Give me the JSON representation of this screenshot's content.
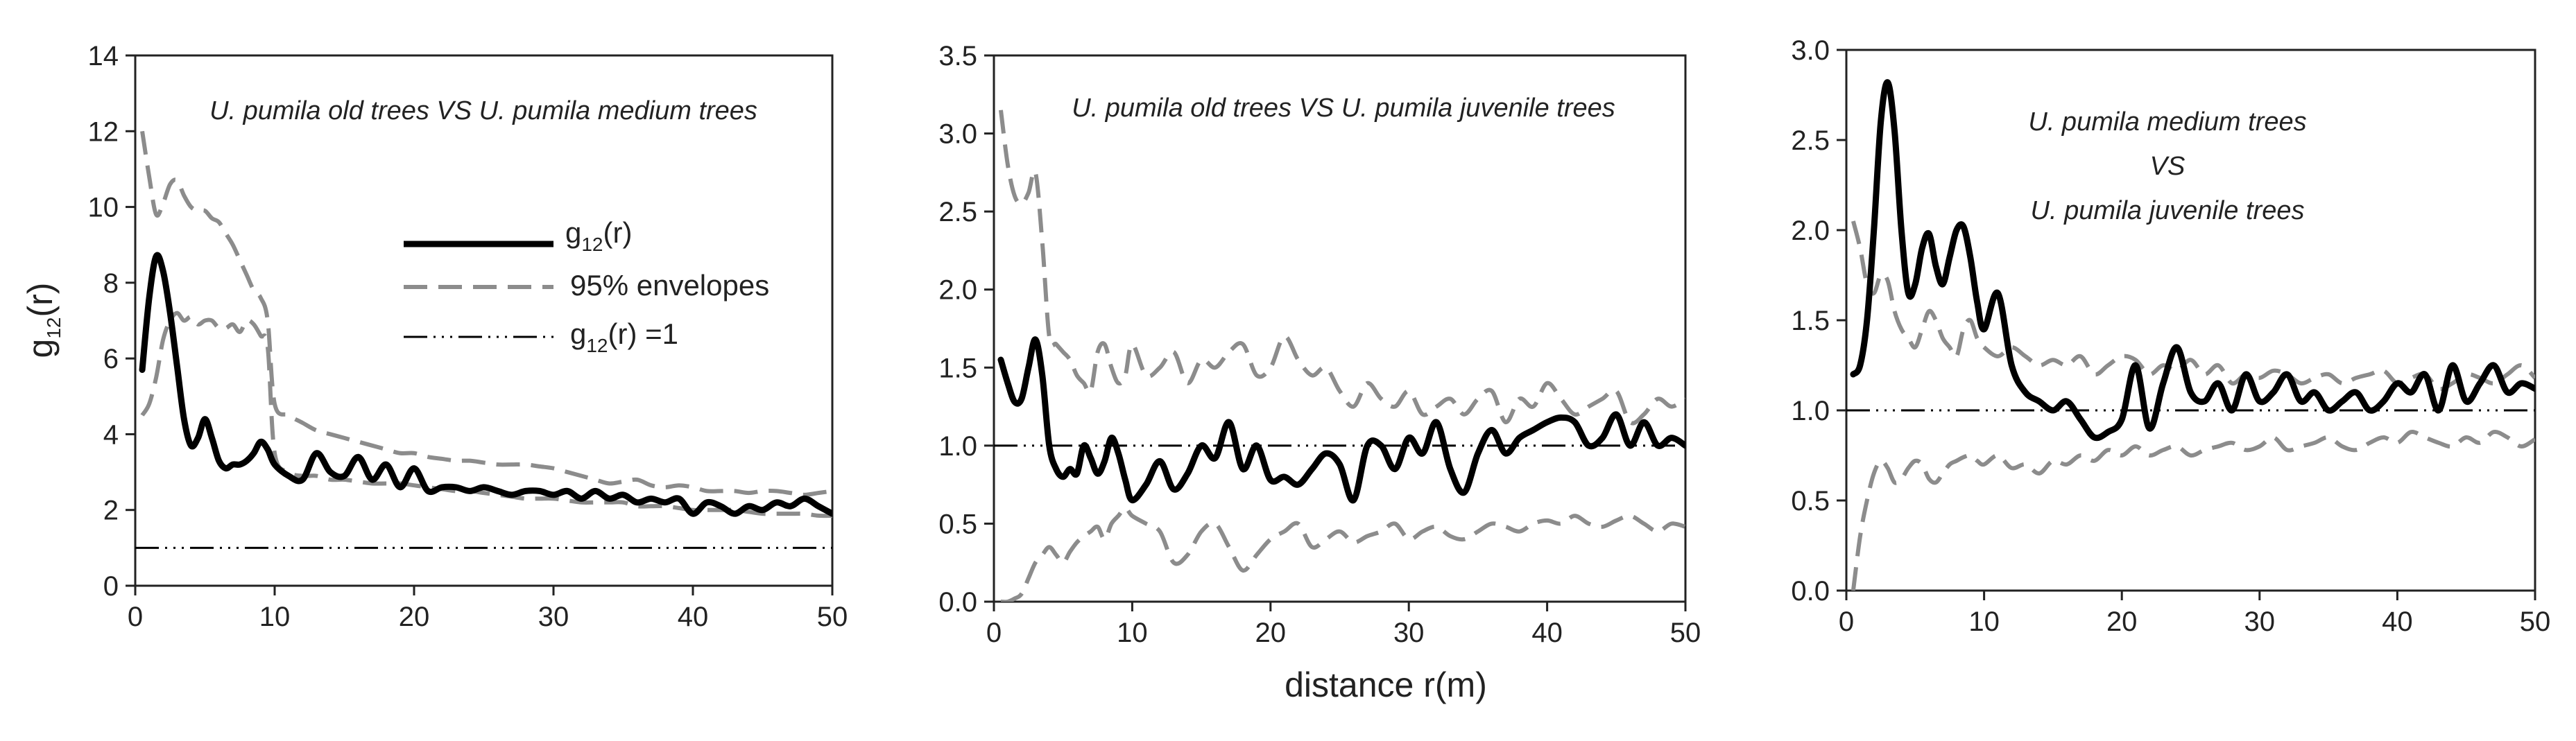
{
  "figure": {
    "xlabel": "distance r(m)",
    "legend": {
      "observed_base": "g",
      "observed_sub": "12",
      "observed_tail": "(r)",
      "envelope": "95% envelopes",
      "reference_base": "g",
      "reference_sub": "12",
      "reference_tail": "(r) =1"
    }
  },
  "chart_data": [
    {
      "type": "line",
      "title_lines": [
        "U. pumila old trees VS U. pumila medium trees"
      ],
      "ylabel_base": "g",
      "ylabel_sub": "12",
      "ylabel_tail": "(r)",
      "xlim": [
        0,
        50
      ],
      "ylim": [
        0,
        14
      ],
      "xticks": [
        0,
        10,
        20,
        30,
        40,
        50
      ],
      "yticks": [
        0,
        2,
        4,
        6,
        8,
        10,
        12,
        14
      ],
      "x": [
        0.5,
        1,
        1.5,
        2,
        2.5,
        3,
        3.5,
        4,
        4.5,
        5,
        5.5,
        6,
        6.5,
        7,
        7.5,
        8,
        8.5,
        9,
        9.5,
        10,
        11,
        12,
        13,
        14,
        15,
        16,
        17,
        18,
        19,
        20,
        21,
        22,
        23,
        24,
        25,
        26,
        27,
        28,
        29,
        30,
        31,
        32,
        33,
        34,
        35,
        36,
        37,
        38,
        39,
        40,
        41,
        42,
        43,
        44,
        45,
        46,
        47,
        48,
        49,
        50
      ],
      "series": [
        {
          "name": "g12(r)",
          "style": "observed",
          "values": [
            5.7,
            7.6,
            8.7,
            8.3,
            7.2,
            5.8,
            4.4,
            3.7,
            3.9,
            4.4,
            3.9,
            3.3,
            3.1,
            3.2,
            3.2,
            3.3,
            3.5,
            3.8,
            3.6,
            3.2,
            2.9,
            2.8,
            3.5,
            3.0,
            2.9,
            3.4,
            2.8,
            3.2,
            2.6,
            3.1,
            2.5,
            2.6,
            2.6,
            2.5,
            2.6,
            2.5,
            2.4,
            2.5,
            2.5,
            2.4,
            2.5,
            2.3,
            2.5,
            2.3,
            2.4,
            2.2,
            2.3,
            2.2,
            2.3,
            1.9,
            2.2,
            2.1,
            1.9,
            2.1,
            2.0,
            2.2,
            2.1,
            2.3,
            2.1,
            1.9
          ]
        },
        {
          "name": "95% envelopes upper",
          "style": "envelope",
          "values": [
            12.0,
            10.8,
            9.8,
            10.1,
            10.6,
            10.7,
            10.3,
            10.0,
            9.9,
            9.9,
            9.7,
            9.6,
            9.3,
            9.0,
            8.6,
            8.2,
            7.8,
            7.6,
            7.0,
            4.8,
            4.5,
            4.3,
            4.1,
            4.0,
            3.9,
            3.8,
            3.7,
            3.6,
            3.5,
            3.5,
            3.4,
            3.35,
            3.3,
            3.3,
            3.25,
            3.2,
            3.2,
            3.2,
            3.15,
            3.1,
            3.0,
            2.9,
            2.8,
            2.7,
            2.75,
            2.8,
            2.65,
            2.6,
            2.65,
            2.6,
            2.5,
            2.5,
            2.5,
            2.45,
            2.5,
            2.5,
            2.45,
            2.4,
            2.45,
            2.5
          ]
        },
        {
          "name": "95% envelopes lower",
          "style": "envelope",
          "values": [
            4.5,
            4.8,
            5.5,
            6.5,
            7.0,
            7.2,
            7.0,
            7.1,
            6.9,
            7.0,
            7.0,
            6.8,
            6.8,
            6.9,
            6.7,
            7.0,
            6.9,
            6.6,
            6.3,
            3.5,
            3.0,
            2.9,
            2.9,
            2.8,
            2.8,
            2.75,
            2.7,
            2.7,
            2.7,
            2.65,
            2.6,
            2.55,
            2.5,
            2.5,
            2.45,
            2.4,
            2.35,
            2.3,
            2.3,
            2.3,
            2.25,
            2.2,
            2.2,
            2.2,
            2.2,
            2.1,
            2.1,
            2.1,
            2.05,
            2.0,
            2.0,
            2.0,
            2.0,
            1.95,
            1.9,
            1.9,
            1.9,
            1.9,
            1.85,
            1.85
          ]
        },
        {
          "name": "g12(r) =1",
          "style": "reference",
          "values": [
            1,
            1,
            1,
            1,
            1,
            1,
            1,
            1,
            1,
            1,
            1,
            1,
            1,
            1,
            1,
            1,
            1,
            1,
            1,
            1,
            1,
            1,
            1,
            1,
            1,
            1,
            1,
            1,
            1,
            1,
            1,
            1,
            1,
            1,
            1,
            1,
            1,
            1,
            1,
            1,
            1,
            1,
            1,
            1,
            1,
            1,
            1,
            1,
            1,
            1,
            1,
            1,
            1,
            1,
            1,
            1,
            1,
            1,
            1,
            1
          ]
        }
      ]
    },
    {
      "type": "line",
      "title_lines": [
        "U. pumila old trees VS U. pumila juvenile trees"
      ],
      "xlim": [
        0,
        50
      ],
      "ylim": [
        0,
        3.5
      ],
      "xticks": [
        0,
        10,
        20,
        30,
        40,
        50
      ],
      "yticks": [
        "0.0",
        "0.5",
        "1.0",
        "1.5",
        "2.0",
        "2.5",
        "3.0",
        "3.5"
      ],
      "x": [
        0.5,
        1,
        1.5,
        2,
        2.5,
        3,
        3.5,
        4,
        4.5,
        5,
        5.5,
        6,
        6.5,
        7,
        7.5,
        8,
        8.5,
        9,
        9.5,
        10,
        11,
        12,
        13,
        14,
        15,
        16,
        17,
        18,
        19,
        20,
        21,
        22,
        23,
        24,
        25,
        26,
        27,
        28,
        29,
        30,
        31,
        32,
        33,
        34,
        35,
        36,
        37,
        38,
        39,
        40,
        41,
        42,
        43,
        44,
        45,
        46,
        47,
        48,
        49,
        50
      ],
      "series": [
        {
          "name": "g12(r)",
          "style": "observed",
          "values": [
            1.55,
            1.4,
            1.28,
            1.3,
            1.5,
            1.68,
            1.45,
            1.0,
            0.85,
            0.8,
            0.85,
            0.82,
            1.0,
            0.92,
            0.82,
            0.9,
            1.05,
            0.95,
            0.78,
            0.65,
            0.75,
            0.9,
            0.72,
            0.82,
            1.0,
            0.92,
            1.15,
            0.85,
            1.0,
            0.78,
            0.8,
            0.75,
            0.85,
            0.95,
            0.88,
            0.65,
            1.0,
            1.0,
            0.85,
            1.05,
            0.95,
            1.15,
            0.85,
            0.7,
            0.95,
            1.1,
            0.95,
            1.05,
            1.1,
            1.15,
            1.18,
            1.15,
            1.0,
            1.05,
            1.2,
            1.0,
            1.15,
            1.0,
            1.05,
            1.0
          ]
        },
        {
          "name": "95% envelopes upper",
          "style": "envelope",
          "values": [
            3.15,
            2.8,
            2.6,
            2.55,
            2.62,
            2.75,
            2.3,
            1.7,
            1.65,
            1.6,
            1.55,
            1.45,
            1.4,
            1.35,
            1.6,
            1.65,
            1.5,
            1.4,
            1.45,
            1.65,
            1.45,
            1.5,
            1.6,
            1.4,
            1.55,
            1.5,
            1.6,
            1.65,
            1.45,
            1.5,
            1.7,
            1.55,
            1.45,
            1.5,
            1.35,
            1.25,
            1.4,
            1.3,
            1.25,
            1.35,
            1.2,
            1.25,
            1.3,
            1.2,
            1.3,
            1.35,
            1.15,
            1.3,
            1.25,
            1.4,
            1.3,
            1.2,
            1.25,
            1.3,
            1.35,
            1.15,
            1.2,
            1.3,
            1.25,
            1.3
          ]
        },
        {
          "name": "95% envelopes lower",
          "style": "envelope",
          "values": [
            0.0,
            0.0,
            0.02,
            0.05,
            0.15,
            0.25,
            0.3,
            0.35,
            0.3,
            0.25,
            0.32,
            0.38,
            0.42,
            0.45,
            0.48,
            0.4,
            0.5,
            0.55,
            0.6,
            0.55,
            0.5,
            0.45,
            0.25,
            0.3,
            0.45,
            0.5,
            0.35,
            0.2,
            0.3,
            0.4,
            0.45,
            0.5,
            0.35,
            0.4,
            0.45,
            0.38,
            0.42,
            0.45,
            0.5,
            0.4,
            0.45,
            0.48,
            0.42,
            0.4,
            0.45,
            0.5,
            0.48,
            0.45,
            0.5,
            0.52,
            0.5,
            0.55,
            0.5,
            0.48,
            0.52,
            0.55,
            0.5,
            0.45,
            0.5,
            0.48
          ]
        },
        {
          "name": "g12(r) =1",
          "style": "reference",
          "values": [
            1,
            1,
            1,
            1,
            1,
            1,
            1,
            1,
            1,
            1,
            1,
            1,
            1,
            1,
            1,
            1,
            1,
            1,
            1,
            1,
            1,
            1,
            1,
            1,
            1,
            1,
            1,
            1,
            1,
            1,
            1,
            1,
            1,
            1,
            1,
            1,
            1,
            1,
            1,
            1,
            1,
            1,
            1,
            1,
            1,
            1,
            1,
            1,
            1,
            1,
            1,
            1,
            1,
            1,
            1,
            1,
            1,
            1,
            1,
            1
          ]
        }
      ]
    },
    {
      "type": "line",
      "title_lines": [
        "U. pumila medium trees",
        "VS",
        "U. pumila juvenile trees"
      ],
      "xlim": [
        0,
        50
      ],
      "ylim": [
        0,
        3.0
      ],
      "xticks": [
        0,
        10,
        20,
        30,
        40,
        50
      ],
      "yticks": [
        "0.0",
        "0.5",
        "1.0",
        "1.5",
        "2.0",
        "2.5",
        "3.0"
      ],
      "x": [
        0.5,
        1,
        1.5,
        2,
        2.5,
        3,
        3.5,
        4,
        4.5,
        5,
        5.5,
        6,
        6.5,
        7,
        7.5,
        8,
        8.5,
        9,
        9.5,
        10,
        11,
        12,
        13,
        14,
        15,
        16,
        17,
        18,
        19,
        20,
        21,
        22,
        23,
        24,
        25,
        26,
        27,
        28,
        29,
        30,
        31,
        32,
        33,
        34,
        35,
        36,
        37,
        38,
        39,
        40,
        41,
        42,
        43,
        44,
        45,
        46,
        47,
        48,
        49,
        50
      ],
      "series": [
        {
          "name": "g12(r)",
          "style": "observed",
          "values": [
            1.2,
            1.25,
            1.5,
            2.0,
            2.6,
            2.82,
            2.55,
            2.0,
            1.65,
            1.7,
            1.9,
            1.98,
            1.8,
            1.7,
            1.85,
            2.0,
            2.02,
            1.85,
            1.6,
            1.45,
            1.65,
            1.25,
            1.1,
            1.05,
            1.0,
            1.05,
            0.95,
            0.85,
            0.88,
            0.95,
            1.25,
            0.9,
            1.15,
            1.35,
            1.1,
            1.05,
            1.15,
            1.0,
            1.2,
            1.05,
            1.1,
            1.2,
            1.05,
            1.1,
            1.0,
            1.05,
            1.1,
            1.0,
            1.05,
            1.15,
            1.1,
            1.2,
            1.0,
            1.25,
            1.05,
            1.15,
            1.25,
            1.1,
            1.15,
            1.12
          ]
        },
        {
          "name": "95% envelopes upper",
          "style": "envelope",
          "values": [
            2.05,
            1.9,
            1.7,
            1.65,
            1.75,
            1.72,
            1.55,
            1.45,
            1.4,
            1.35,
            1.45,
            1.55,
            1.5,
            1.4,
            1.35,
            1.3,
            1.45,
            1.5,
            1.4,
            1.35,
            1.3,
            1.35,
            1.3,
            1.25,
            1.28,
            1.25,
            1.3,
            1.2,
            1.25,
            1.3,
            1.28,
            1.2,
            1.25,
            1.22,
            1.28,
            1.2,
            1.25,
            1.15,
            1.2,
            1.18,
            1.22,
            1.2,
            1.15,
            1.18,
            1.2,
            1.15,
            1.18,
            1.2,
            1.22,
            1.15,
            1.18,
            1.2,
            1.12,
            1.15,
            1.2,
            1.18,
            1.15,
            1.2,
            1.25,
            1.18
          ]
        },
        {
          "name": "95% envelopes lower",
          "style": "envelope",
          "values": [
            0.0,
            0.3,
            0.5,
            0.65,
            0.72,
            0.68,
            0.6,
            0.62,
            0.68,
            0.72,
            0.7,
            0.62,
            0.6,
            0.65,
            0.7,
            0.72,
            0.74,
            0.75,
            0.72,
            0.7,
            0.75,
            0.68,
            0.7,
            0.65,
            0.72,
            0.7,
            0.75,
            0.72,
            0.78,
            0.75,
            0.8,
            0.75,
            0.78,
            0.8,
            0.75,
            0.78,
            0.8,
            0.82,
            0.78,
            0.8,
            0.85,
            0.78,
            0.8,
            0.82,
            0.85,
            0.8,
            0.78,
            0.82,
            0.85,
            0.82,
            0.88,
            0.85,
            0.82,
            0.8,
            0.85,
            0.82,
            0.88,
            0.85,
            0.8,
            0.84
          ]
        },
        {
          "name": "g12(r) =1",
          "style": "reference",
          "values": [
            1,
            1,
            1,
            1,
            1,
            1,
            1,
            1,
            1,
            1,
            1,
            1,
            1,
            1,
            1,
            1,
            1,
            1,
            1,
            1,
            1,
            1,
            1,
            1,
            1,
            1,
            1,
            1,
            1,
            1,
            1,
            1,
            1,
            1,
            1,
            1,
            1,
            1,
            1,
            1,
            1,
            1,
            1,
            1,
            1,
            1,
            1,
            1,
            1,
            1,
            1,
            1,
            1,
            1,
            1,
            1,
            1,
            1,
            1,
            1
          ]
        }
      ]
    }
  ]
}
